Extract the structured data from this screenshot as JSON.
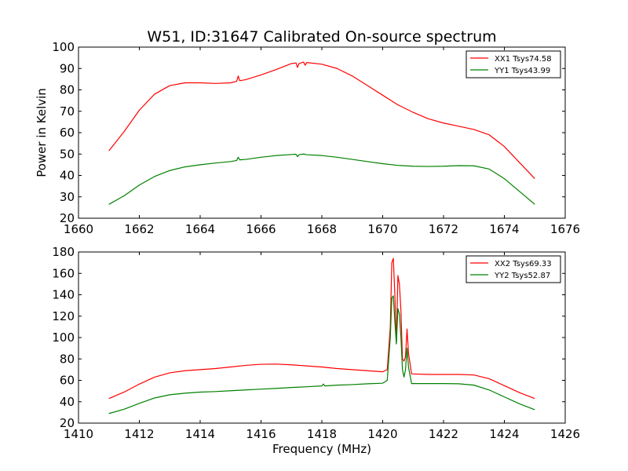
{
  "chart_data": [
    {
      "type": "line",
      "title": "W51, ID:31647 Calibrated On-source spectrum",
      "xlabel": "",
      "ylabel": "Power in Kelvin",
      "xlim": [
        1660,
        1676
      ],
      "ylim": [
        20,
        100
      ],
      "xticks": [
        1660,
        1662,
        1664,
        1666,
        1668,
        1670,
        1672,
        1674,
        1676
      ],
      "yticks": [
        20,
        30,
        40,
        50,
        60,
        70,
        80,
        90,
        100
      ],
      "legend_position": "top-right",
      "grid": false,
      "series": [
        {
          "name": "XX1 Tsys74.58",
          "color": "#ff0000",
          "points": [
            [
              1661.0,
              51.5
            ],
            [
              1661.5,
              60.5
            ],
            [
              1662.0,
              70.5
            ],
            [
              1662.5,
              78.0
            ],
            [
              1663.0,
              82.0
            ],
            [
              1663.5,
              83.3
            ],
            [
              1664.0,
              83.3
            ],
            [
              1664.5,
              83.0
            ],
            [
              1665.0,
              83.3
            ],
            [
              1665.2,
              84.0
            ],
            [
              1665.25,
              86.5
            ],
            [
              1665.3,
              84.3
            ],
            [
              1665.5,
              84.8
            ],
            [
              1666.0,
              87.0
            ],
            [
              1666.5,
              89.5
            ],
            [
              1667.0,
              92.3
            ],
            [
              1667.15,
              92.6
            ],
            [
              1667.2,
              90.5
            ],
            [
              1667.25,
              92.3
            ],
            [
              1667.4,
              93.0
            ],
            [
              1667.45,
              91.5
            ],
            [
              1667.5,
              92.8
            ],
            [
              1668.0,
              92.0
            ],
            [
              1668.5,
              90.0
            ],
            [
              1669.0,
              86.5
            ],
            [
              1669.5,
              82.0
            ],
            [
              1670.0,
              77.5
            ],
            [
              1670.5,
              73.0
            ],
            [
              1671.0,
              69.5
            ],
            [
              1671.5,
              66.5
            ],
            [
              1672.0,
              64.5
            ],
            [
              1672.5,
              63.0
            ],
            [
              1673.0,
              61.5
            ],
            [
              1673.5,
              59.0
            ],
            [
              1674.0,
              53.5
            ],
            [
              1674.5,
              46.0
            ],
            [
              1675.0,
              38.5
            ]
          ]
        },
        {
          "name": "YY1 Tsys43.99",
          "color": "#008000",
          "points": [
            [
              1661.0,
              26.5
            ],
            [
              1661.5,
              30.5
            ],
            [
              1662.0,
              35.5
            ],
            [
              1662.5,
              39.5
            ],
            [
              1663.0,
              42.3
            ],
            [
              1663.5,
              44.0
            ],
            [
              1664.0,
              45.0
            ],
            [
              1664.5,
              45.8
            ],
            [
              1665.0,
              46.5
            ],
            [
              1665.2,
              47.0
            ],
            [
              1665.25,
              48.5
            ],
            [
              1665.3,
              47.3
            ],
            [
              1665.5,
              47.5
            ],
            [
              1666.0,
              48.5
            ],
            [
              1666.5,
              49.3
            ],
            [
              1667.0,
              49.8
            ],
            [
              1667.15,
              49.9
            ],
            [
              1667.2,
              48.8
            ],
            [
              1667.25,
              49.7
            ],
            [
              1667.4,
              50.0
            ],
            [
              1667.5,
              49.7
            ],
            [
              1668.0,
              49.3
            ],
            [
              1668.5,
              48.5
            ],
            [
              1669.0,
              47.5
            ],
            [
              1669.5,
              46.5
            ],
            [
              1670.0,
              45.5
            ],
            [
              1670.5,
              44.7
            ],
            [
              1671.0,
              44.3
            ],
            [
              1671.5,
              44.2
            ],
            [
              1672.0,
              44.3
            ],
            [
              1672.5,
              44.6
            ],
            [
              1673.0,
              44.5
            ],
            [
              1673.5,
              43.0
            ],
            [
              1674.0,
              38.5
            ],
            [
              1674.5,
              32.5
            ],
            [
              1675.0,
              26.5
            ]
          ]
        }
      ]
    },
    {
      "type": "line",
      "title": "",
      "xlabel": "Frequency (MHz)",
      "ylabel": "",
      "xlim": [
        1410,
        1426
      ],
      "ylim": [
        20,
        180
      ],
      "xticks": [
        1410,
        1412,
        1414,
        1416,
        1418,
        1420,
        1422,
        1424,
        1426
      ],
      "yticks": [
        20,
        40,
        60,
        80,
        100,
        120,
        140,
        160,
        180
      ],
      "legend_position": "top-right",
      "grid": false,
      "series": [
        {
          "name": "XX2 Tsys69.33",
          "color": "#ff0000",
          "points": [
            [
              1411.0,
              43.0
            ],
            [
              1411.5,
              49.0
            ],
            [
              1412.0,
              56.5
            ],
            [
              1412.5,
              63.0
            ],
            [
              1413.0,
              67.0
            ],
            [
              1413.5,
              69.0
            ],
            [
              1414.0,
              70.0
            ],
            [
              1414.5,
              71.0
            ],
            [
              1415.0,
              72.5
            ],
            [
              1415.5,
              74.0
            ],
            [
              1416.0,
              75.0
            ],
            [
              1416.5,
              75.2
            ],
            [
              1417.0,
              74.5
            ],
            [
              1417.5,
              73.5
            ],
            [
              1418.0,
              72.5
            ],
            [
              1418.5,
              71.0
            ],
            [
              1419.0,
              70.0
            ],
            [
              1419.5,
              69.0
            ],
            [
              1420.0,
              68.0
            ],
            [
              1420.15,
              70.0
            ],
            [
              1420.25,
              110.0
            ],
            [
              1420.3,
              170.0
            ],
            [
              1420.35,
              174.0
            ],
            [
              1420.4,
              140.0
            ],
            [
              1420.45,
              95.0
            ],
            [
              1420.5,
              158.0
            ],
            [
              1420.55,
              150.0
            ],
            [
              1420.6,
              125.0
            ],
            [
              1420.65,
              80.0
            ],
            [
              1420.7,
              78.0
            ],
            [
              1420.75,
              82.0
            ],
            [
              1420.8,
              108.0
            ],
            [
              1420.85,
              85.0
            ],
            [
              1420.95,
              66.0
            ],
            [
              1421.5,
              65.5
            ],
            [
              1422.0,
              65.5
            ],
            [
              1422.5,
              65.5
            ],
            [
              1423.0,
              65.0
            ],
            [
              1423.5,
              61.5
            ],
            [
              1424.0,
              55.0
            ],
            [
              1424.5,
              48.5
            ],
            [
              1425.0,
              43.0
            ]
          ]
        },
        {
          "name": "YY2 Tsys52.87",
          "color": "#008000",
          "points": [
            [
              1411.0,
              29.0
            ],
            [
              1411.5,
              33.0
            ],
            [
              1412.0,
              38.5
            ],
            [
              1412.5,
              43.5
            ],
            [
              1413.0,
              46.5
            ],
            [
              1413.5,
              48.0
            ],
            [
              1414.0,
              49.0
            ],
            [
              1414.5,
              49.5
            ],
            [
              1415.0,
              50.3
            ],
            [
              1415.5,
              51.0
            ],
            [
              1416.0,
              51.8
            ],
            [
              1416.5,
              52.5
            ],
            [
              1417.0,
              53.3
            ],
            [
              1417.5,
              54.0
            ],
            [
              1418.0,
              54.8
            ],
            [
              1418.05,
              56.5
            ],
            [
              1418.1,
              54.8
            ],
            [
              1418.5,
              55.5
            ],
            [
              1419.0,
              56.0
            ],
            [
              1419.5,
              56.8
            ],
            [
              1420.0,
              57.3
            ],
            [
              1420.15,
              60.0
            ],
            [
              1420.25,
              100.0
            ],
            [
              1420.3,
              137.0
            ],
            [
              1420.35,
              139.0
            ],
            [
              1420.4,
              115.0
            ],
            [
              1420.45,
              94.0
            ],
            [
              1420.5,
              127.0
            ],
            [
              1420.55,
              122.0
            ],
            [
              1420.6,
              100.0
            ],
            [
              1420.65,
              70.0
            ],
            [
              1420.7,
              63.0
            ],
            [
              1420.75,
              70.0
            ],
            [
              1420.8,
              90.0
            ],
            [
              1420.85,
              72.0
            ],
            [
              1420.95,
              57.0
            ],
            [
              1421.5,
              57.0
            ],
            [
              1422.0,
              57.0
            ],
            [
              1422.5,
              56.8
            ],
            [
              1423.0,
              55.5
            ],
            [
              1423.5,
              51.0
            ],
            [
              1424.0,
              44.5
            ],
            [
              1424.5,
              38.0
            ],
            [
              1425.0,
              32.5
            ]
          ]
        }
      ]
    }
  ]
}
